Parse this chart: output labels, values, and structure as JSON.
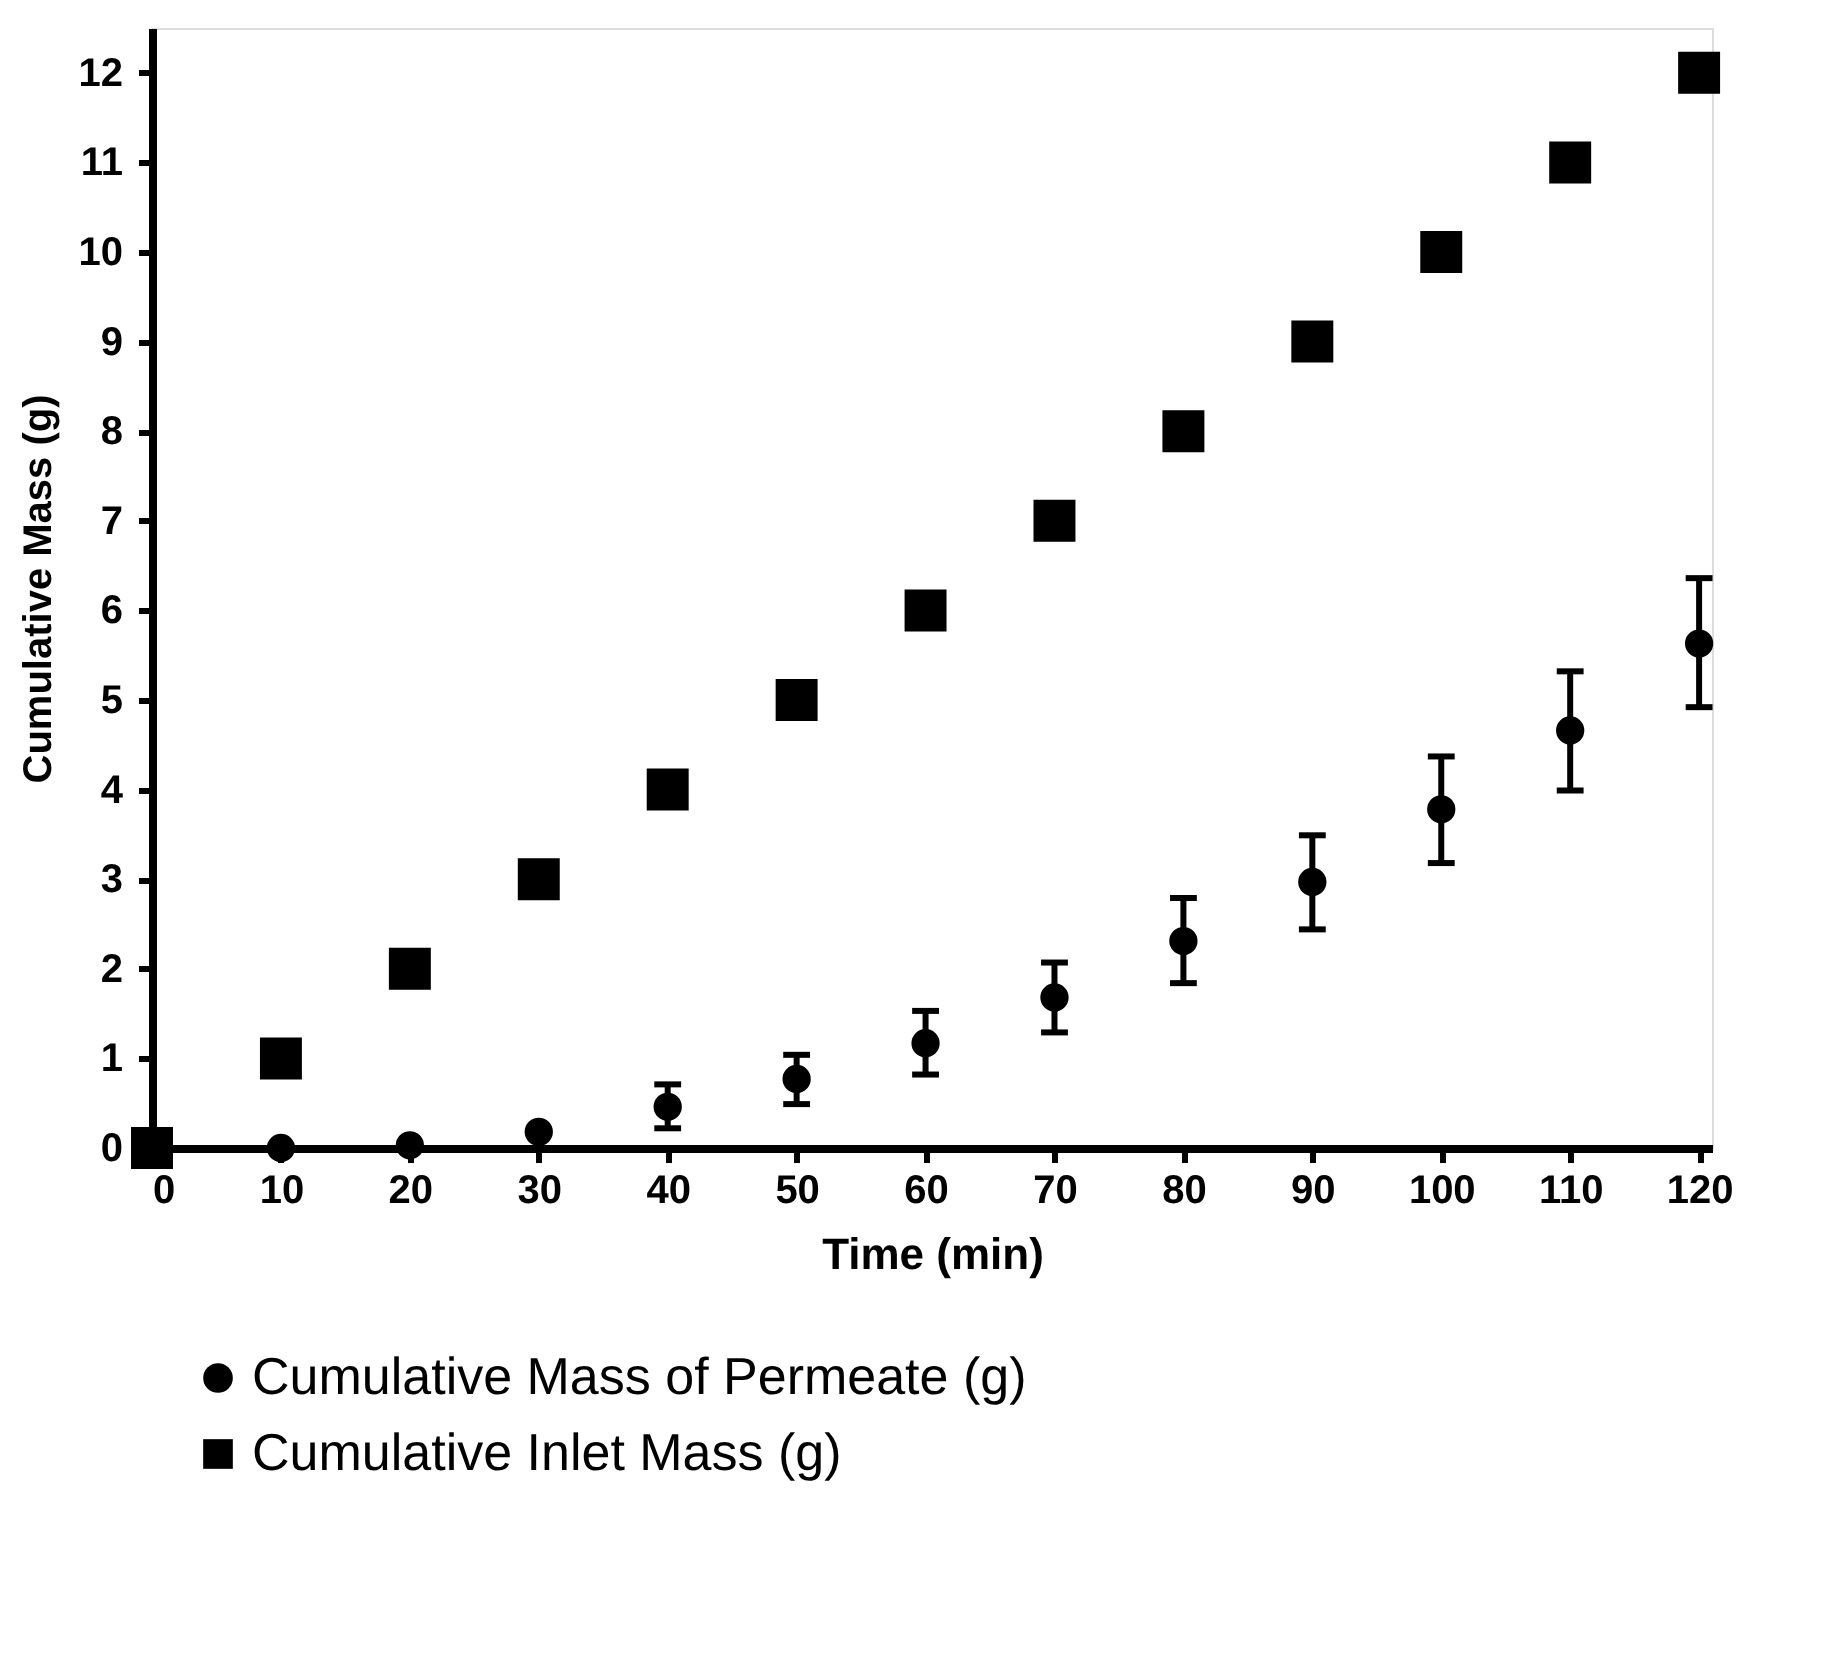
{
  "chart_data": {
    "type": "scatter",
    "xlabel": "Time (min)",
    "ylabel": "Cumulative Mass (g)",
    "x": [
      0,
      10,
      20,
      30,
      40,
      50,
      60,
      70,
      80,
      90,
      100,
      110,
      120
    ],
    "series": [
      {
        "name": "Cumulative Mass of Permeate (g)",
        "color": "#000000",
        "marker": "circle",
        "values": [
          null,
          0,
          0.03,
          0.18,
          0.46,
          0.77,
          1.17,
          1.68,
          2.31,
          2.97,
          3.78,
          4.66,
          5.63
        ],
        "errors": [
          null,
          null,
          null,
          null,
          [
            0.22,
            0.71
          ],
          [
            0.49,
            1.04
          ],
          [
            0.82,
            1.53
          ],
          [
            1.29,
            2.07
          ],
          [
            1.84,
            2.79
          ],
          [
            2.44,
            3.49
          ],
          [
            3.18,
            4.37
          ],
          [
            3.99,
            5.32
          ],
          [
            4.92,
            6.36
          ]
        ]
      },
      {
        "name": "Cumulative Inlet Mass (g)",
        "color": "#000000",
        "marker": "square",
        "values": [
          0,
          1,
          2,
          3,
          4,
          5,
          6,
          7,
          8,
          9,
          10,
          11,
          12
        ]
      }
    ],
    "xlim": [
      0,
      121
    ],
    "ylim": [
      0,
      12.5
    ],
    "xticks": [
      0,
      10,
      20,
      30,
      40,
      50,
      60,
      70,
      80,
      90,
      100,
      110,
      120
    ],
    "yticks": [
      0,
      1,
      2,
      3,
      4,
      5,
      6,
      7,
      8,
      9,
      10,
      11,
      12
    ],
    "grid": false,
    "legend": "bottom"
  }
}
